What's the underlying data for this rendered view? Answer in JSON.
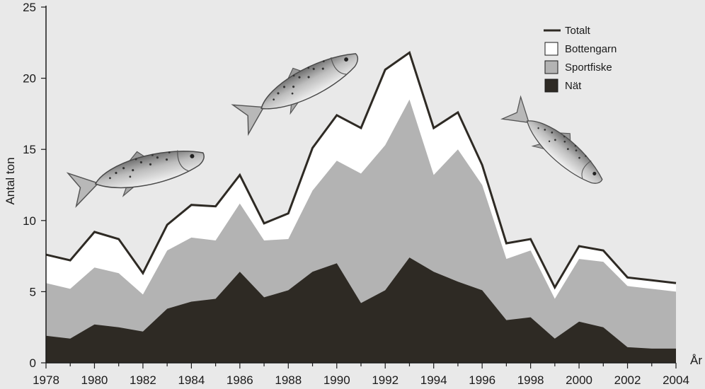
{
  "chart_data": {
    "type": "area",
    "title": "",
    "xlabel": "År",
    "ylabel": "Antal ton",
    "x": [
      1978,
      1979,
      1980,
      1981,
      1982,
      1983,
      1984,
      1985,
      1986,
      1987,
      1988,
      1989,
      1990,
      1991,
      1992,
      1993,
      1994,
      1995,
      1996,
      1997,
      1998,
      1999,
      2000,
      2001,
      2002,
      2003,
      2004
    ],
    "xticks": [
      "1978",
      "1980",
      "1982",
      "1984",
      "1986",
      "1988",
      "1990",
      "1992",
      "1994",
      "1996",
      "1998",
      "2000",
      "2002",
      "2004"
    ],
    "yticks": [
      "0",
      "5",
      "10",
      "15",
      "20",
      "25"
    ],
    "xlim": [
      1978,
      2004
    ],
    "ylim": [
      0,
      25
    ],
    "stacked": true,
    "series": [
      {
        "name": "Nät",
        "kind": "area",
        "color": "#2e2a24",
        "values": [
          1.9,
          1.7,
          2.7,
          2.5,
          2.2,
          3.8,
          4.3,
          4.5,
          6.4,
          4.6,
          5.1,
          6.4,
          7.0,
          4.2,
          5.1,
          7.4,
          6.4,
          5.7,
          5.1,
          3.0,
          3.2,
          1.7,
          2.9,
          2.5,
          1.1,
          1.0,
          1.0
        ]
      },
      {
        "name": "Sportfiske",
        "kind": "area",
        "color": "#b3b3b3",
        "values": [
          3.7,
          3.5,
          4.0,
          3.8,
          2.6,
          4.1,
          4.5,
          4.1,
          4.8,
          4.0,
          3.6,
          5.7,
          7.2,
          9.1,
          10.2,
          11.1,
          6.8,
          9.3,
          7.4,
          4.3,
          4.7,
          2.8,
          4.4,
          4.6,
          4.3,
          4.2,
          4.0
        ]
      },
      {
        "name": "Bottengarn",
        "kind": "area",
        "color": "#ffffff",
        "values": [
          2.0,
          2.0,
          2.5,
          2.4,
          1.5,
          1.8,
          2.3,
          2.4,
          2.0,
          1.2,
          1.8,
          3.0,
          3.2,
          3.2,
          5.3,
          3.3,
          3.3,
          2.6,
          1.4,
          1.1,
          0.8,
          0.8,
          0.9,
          0.8,
          0.6,
          0.6,
          0.6
        ]
      },
      {
        "name": "Totalt",
        "kind": "line",
        "color": "#2e2a24",
        "values": [
          7.6,
          7.2,
          9.2,
          8.7,
          6.3,
          9.7,
          11.1,
          11.0,
          13.2,
          9.8,
          10.5,
          15.1,
          17.4,
          16.5,
          20.6,
          21.8,
          16.5,
          17.6,
          13.9,
          8.4,
          8.7,
          5.3,
          8.2,
          7.9,
          6.0,
          5.8,
          5.6
        ]
      }
    ],
    "legend": {
      "placement": "top-right",
      "items": [
        {
          "label": "Totalt",
          "marker": "line",
          "color": "#2e2a24"
        },
        {
          "label": "Bottengarn",
          "marker": "box",
          "color": "#ffffff"
        },
        {
          "label": "Sportfiske",
          "marker": "box",
          "color": "#b3b3b3"
        },
        {
          "label": "Nät",
          "marker": "box",
          "color": "#2e2a24"
        }
      ]
    },
    "grid": false,
    "decorations": [
      "salmon-illustration",
      "salmon-illustration",
      "salmon-illustration"
    ]
  }
}
